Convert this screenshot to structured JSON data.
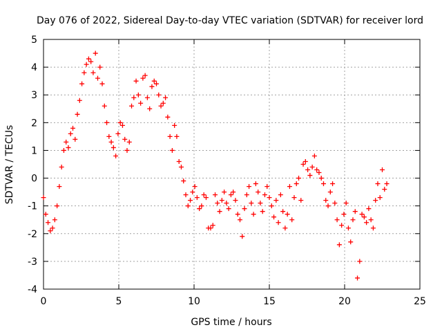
{
  "chart_data": {
    "type": "scatter",
    "title": "Day 076 of 2022, Sidereal Day-to-day VTEC variation (SDTVAR) for receiver lord",
    "xlabel": "GPS time / hours",
    "ylabel": "SDTVAR / TECUs",
    "xlim": [
      0,
      25
    ],
    "ylim": [
      -4,
      5
    ],
    "xticks": [
      "0",
      "5",
      "10",
      "15",
      "20",
      "25"
    ],
    "yticks": [
      "-4",
      "-3",
      "-2",
      "-1",
      "0",
      "1",
      "2",
      "3",
      "4",
      "5"
    ],
    "grid": true,
    "marker": "+",
    "series_color": "#ff0000",
    "x": [
      0.0,
      0.15,
      0.3,
      0.45,
      0.6,
      0.75,
      0.9,
      1.05,
      1.2,
      1.35,
      1.5,
      1.65,
      1.8,
      1.95,
      2.1,
      2.25,
      2.4,
      2.55,
      2.7,
      2.85,
      3.0,
      3.15,
      3.3,
      3.45,
      3.6,
      3.75,
      3.9,
      4.05,
      4.2,
      4.35,
      4.5,
      4.65,
      4.8,
      4.95,
      5.1,
      5.25,
      5.4,
      5.55,
      5.7,
      5.85,
      6.0,
      6.15,
      6.3,
      6.45,
      6.6,
      6.75,
      6.9,
      7.05,
      7.2,
      7.35,
      7.5,
      7.65,
      7.8,
      7.95,
      8.1,
      8.25,
      8.4,
      8.55,
      8.7,
      8.85,
      9.0,
      9.15,
      9.3,
      9.45,
      9.6,
      9.75,
      9.9,
      10.05,
      10.2,
      10.35,
      10.5,
      10.65,
      10.8,
      10.95,
      11.1,
      11.25,
      11.4,
      11.55,
      11.7,
      11.85,
      12.0,
      12.15,
      12.3,
      12.45,
      12.6,
      12.75,
      12.9,
      13.05,
      13.2,
      13.35,
      13.5,
      13.65,
      13.8,
      13.95,
      14.1,
      14.25,
      14.4,
      14.55,
      14.7,
      14.85,
      15.0,
      15.15,
      15.3,
      15.45,
      15.6,
      15.75,
      15.9,
      16.05,
      16.2,
      16.35,
      16.5,
      16.65,
      16.8,
      16.95,
      17.1,
      17.25,
      17.4,
      17.55,
      17.7,
      17.85,
      18.0,
      18.15,
      18.3,
      18.45,
      18.6,
      18.75,
      18.9,
      19.05,
      19.2,
      19.35,
      19.5,
      19.65,
      19.8,
      19.95,
      20.1,
      20.25,
      20.4,
      20.55,
      20.7,
      20.85,
      21.0,
      21.15,
      21.3,
      21.45,
      21.6,
      21.75,
      21.9,
      22.05,
      22.2,
      22.35,
      22.5,
      22.65,
      22.8
    ],
    "y": [
      -0.7,
      -1.3,
      -1.6,
      -1.9,
      -1.8,
      -1.5,
      -1.0,
      -0.3,
      0.4,
      1.0,
      1.3,
      1.1,
      1.6,
      1.8,
      1.4,
      2.3,
      2.8,
      3.4,
      3.8,
      4.1,
      4.3,
      4.2,
      3.8,
      4.5,
      3.6,
      4.0,
      3.4,
      2.6,
      2.0,
      1.5,
      1.3,
      1.1,
      0.8,
      1.6,
      2.0,
      1.9,
      1.4,
      1.0,
      1.3,
      2.6,
      2.9,
      3.5,
      3.0,
      2.7,
      3.6,
      3.7,
      2.9,
      2.5,
      3.3,
      3.5,
      3.4,
      3.0,
      2.6,
      2.7,
      2.9,
      2.2,
      1.5,
      1.0,
      1.9,
      1.5,
      0.6,
      0.4,
      -0.1,
      -0.6,
      -1.0,
      -0.8,
      -0.5,
      -0.3,
      -0.7,
      -1.1,
      -1.0,
      -0.6,
      -0.7,
      -1.8,
      -1.8,
      -1.7,
      -0.6,
      -0.9,
      -1.2,
      -0.8,
      -0.5,
      -0.9,
      -1.1,
      -0.6,
      -0.5,
      -0.8,
      -1.3,
      -1.5,
      -2.1,
      -1.1,
      -0.6,
      -0.3,
      -0.9,
      -1.3,
      -0.2,
      -0.5,
      -0.9,
      -1.2,
      -0.6,
      -0.3,
      -0.7,
      -1.0,
      -1.4,
      -0.8,
      -1.6,
      -0.6,
      -1.2,
      -1.8,
      -1.3,
      -0.3,
      -1.5,
      -0.7,
      -0.2,
      0.0,
      -0.8,
      0.5,
      0.6,
      0.3,
      0.1,
      0.4,
      0.8,
      0.3,
      0.2,
      0.0,
      -0.2,
      -0.8,
      -1.0,
      -0.5,
      -0.2,
      -0.9,
      -1.5,
      -2.4,
      -1.7,
      -1.3,
      -0.9,
      -1.8,
      -2.3,
      -1.5,
      -1.2,
      -3.6,
      -3.0,
      -1.3,
      -1.4,
      -1.6,
      -1.1,
      -1.5,
      -1.8,
      -0.8,
      -0.2,
      -0.7,
      0.3,
      -0.4,
      -0.2
    ]
  }
}
